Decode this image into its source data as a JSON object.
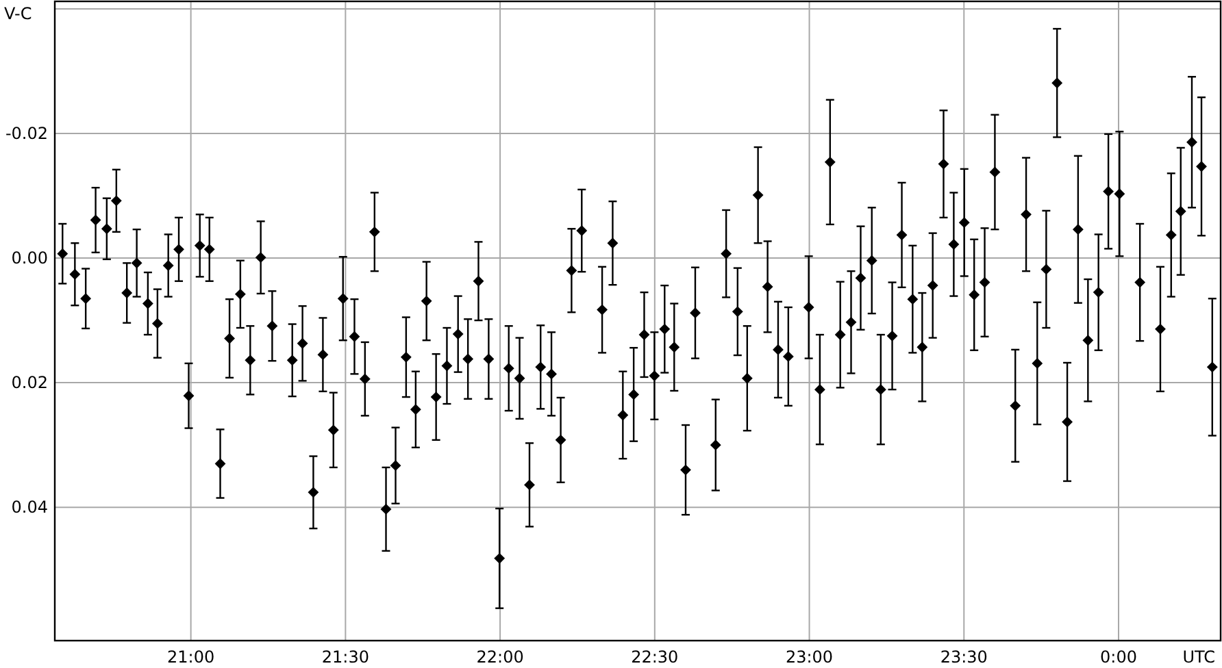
{
  "chart_data": {
    "type": "scatter",
    "xlabel": "UTC",
    "ylabel": "V-C",
    "xlim": [
      20.56,
      24.33
    ],
    "ylim": [
      0.0614,
      -0.0412
    ],
    "xticks": [
      {
        "value": 21,
        "label": "21:00"
      },
      {
        "value": 21.5,
        "label": "21:30"
      },
      {
        "value": 22,
        "label": "22:00"
      },
      {
        "value": 22.5,
        "label": "22:30"
      },
      {
        "value": 23,
        "label": "23:00"
      },
      {
        "value": 23.5,
        "label": "23:30"
      },
      {
        "value": 24,
        "label": "0:00"
      }
    ],
    "yticks": [
      {
        "value": -0.04,
        "label": null
      },
      {
        "value": -0.02,
        "label": "-0.02"
      },
      {
        "value": 0,
        "label": "0.00"
      },
      {
        "value": 0.02,
        "label": "0.02"
      },
      {
        "value": 0.04,
        "label": "0.04"
      }
    ],
    "grid": true,
    "marker": "diamond",
    "series": [
      {
        "color": "#000000",
        "x": [
          20.585,
          20.625,
          20.66,
          20.692,
          20.728,
          20.759,
          20.793,
          20.825,
          20.861,
          20.892,
          20.927,
          20.961,
          20.993,
          21.029,
          21.06,
          21.095,
          21.125,
          21.16,
          21.192,
          21.226,
          21.263,
          21.328,
          21.361,
          21.396,
          21.427,
          21.461,
          21.492,
          21.529,
          21.563,
          21.594,
          21.631,
          21.662,
          21.696,
          21.727,
          21.762,
          21.793,
          21.828,
          21.864,
          21.896,
          21.93,
          21.963,
          21.998,
          22.028,
          22.063,
          22.095,
          22.131,
          22.166,
          22.196,
          22.231,
          22.264,
          22.33,
          22.364,
          22.397,
          22.432,
          22.466,
          22.499,
          22.532,
          22.563,
          22.6,
          22.631,
          22.697,
          22.731,
          22.768,
          22.799,
          22.834,
          22.865,
          22.899,
          22.932,
          22.998,
          23.034,
          23.067,
          23.1,
          23.135,
          23.166,
          23.202,
          23.231,
          23.268,
          23.299,
          23.334,
          23.365,
          23.399,
          23.434,
          23.467,
          23.501,
          23.533,
          23.567,
          23.6,
          23.666,
          23.701,
          23.737,
          23.766,
          23.801,
          23.834,
          23.869,
          23.901,
          23.935,
          23.967,
          24.003,
          24.069,
          24.135,
          24.17,
          24.201,
          24.237,
          24.268,
          24.303
        ],
        "values": [
          -0.0007,
          0.0026,
          0.0065,
          -0.0061,
          -0.0047,
          -0.0092,
          0.0056,
          0.0008,
          0.0073,
          0.0105,
          0.0012,
          -0.0014,
          0.0221,
          -0.002,
          -0.0014,
          0.033,
          0.0129,
          0.0058,
          0.0164,
          -0.0001,
          0.0109,
          0.0164,
          0.0137,
          0.0376,
          0.0155,
          0.0276,
          0.0065,
          0.0126,
          0.0194,
          -0.0042,
          0.0403,
          0.0333,
          0.0159,
          0.0243,
          0.0069,
          0.0223,
          0.0173,
          0.0122,
          0.0162,
          0.0037,
          0.0162,
          0.0482,
          0.0177,
          0.0193,
          0.0364,
          0.0175,
          0.0186,
          0.0292,
          0.002,
          -0.0044,
          0.0083,
          -0.0024,
          0.0252,
          0.0219,
          0.0123,
          0.0189,
          0.0114,
          0.0143,
          0.034,
          0.0088,
          0.03,
          -0.0007,
          0.0086,
          0.0193,
          -0.0101,
          0.0046,
          0.0147,
          0.0158,
          0.0079,
          0.0211,
          -0.0154,
          0.0123,
          0.0103,
          0.0032,
          0.0004,
          0.0211,
          0.0125,
          -0.0037,
          0.0066,
          0.0143,
          0.0044,
          -0.0151,
          -0.0022,
          -0.0057,
          0.0059,
          0.0039,
          -0.0138,
          0.0237,
          -0.007,
          0.0169,
          0.0018,
          -0.0281,
          0.0263,
          -0.0046,
          0.0132,
          0.0055,
          -0.0107,
          -0.0103,
          0.0039,
          0.0114,
          -0.0037,
          -0.0075,
          -0.0186,
          -0.0147,
          0.0175
        ],
        "errors": [
          0.0048,
          0.005,
          0.0048,
          0.0052,
          0.0049,
          0.005,
          0.0048,
          0.0054,
          0.005,
          0.0055,
          0.005,
          0.0051,
          0.0052,
          0.005,
          0.0051,
          0.0055,
          0.0063,
          0.0054,
          0.0055,
          0.0058,
          0.0056,
          0.0058,
          0.006,
          0.0058,
          0.0059,
          0.006,
          0.0067,
          0.006,
          0.0059,
          0.0063,
          0.0067,
          0.0061,
          0.0064,
          0.0061,
          0.0063,
          0.0069,
          0.0061,
          0.0061,
          0.0064,
          0.0063,
          0.0064,
          0.008,
          0.0068,
          0.0065,
          0.0067,
          0.0067,
          0.0067,
          0.0068,
          0.0067,
          0.0066,
          0.0069,
          0.0067,
          0.007,
          0.0075,
          0.0068,
          0.007,
          0.007,
          0.007,
          0.0072,
          0.0073,
          0.0073,
          0.007,
          0.007,
          0.0084,
          0.0077,
          0.0073,
          0.0077,
          0.0079,
          0.0082,
          0.0088,
          0.01,
          0.0085,
          0.0082,
          0.0083,
          0.0085,
          0.0088,
          0.0086,
          0.0084,
          0.0086,
          0.0087,
          0.0084,
          0.0086,
          0.0083,
          0.0086,
          0.0089,
          0.0087,
          0.0092,
          0.009,
          0.0091,
          0.0098,
          0.0094,
          0.0087,
          0.0095,
          0.0118,
          0.0098,
          0.0093,
          0.0092,
          0.01,
          0.0094,
          0.01,
          0.0099,
          0.0102,
          0.0105,
          0.0111,
          0.011
        ]
      }
    ]
  }
}
